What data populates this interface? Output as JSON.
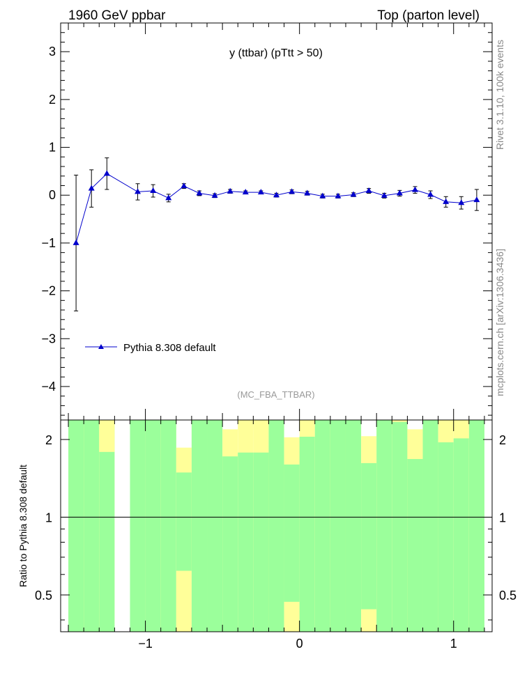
{
  "header": {
    "left": "1960 GeV ppbar",
    "right": "Top (parton level)"
  },
  "side_labels": {
    "rivet": "Rivet 3.1.10,  100k events",
    "mcplots": "mcplots.cern.ch [arXiv:1306.3436]"
  },
  "chart_data": {
    "type": "line",
    "title": "y (ttbar) (pTtt > 50)",
    "watermark": "(MC_FBA_TTBAR)",
    "xlabel": "",
    "ylabel": "",
    "xlim": [
      -1.55,
      1.25
    ],
    "ylim": [
      -4.7,
      3.6
    ],
    "x_ticks": [
      -1,
      0,
      1
    ],
    "x_tick_labels": [
      "−1",
      "0",
      "1"
    ],
    "y_ticks": [
      -4,
      -3,
      -2,
      -1,
      0,
      1,
      2,
      3
    ],
    "y_tick_labels": [
      "−4",
      "−3",
      "−2",
      "−1",
      "0",
      "1",
      "2",
      "3"
    ],
    "legend": {
      "placement": "lower-left",
      "entries": [
        "Pythia 8.308 default"
      ]
    },
    "series": [
      {
        "name": "Pythia 8.308 default",
        "color": "#0000cc",
        "marker": "triangle",
        "x": [
          -1.45,
          -1.35,
          -1.25,
          -1.05,
          -0.95,
          -0.85,
          -0.75,
          -0.65,
          -0.55,
          -0.45,
          -0.35,
          -0.25,
          -0.15,
          -0.05,
          0.05,
          0.15,
          0.25,
          0.35,
          0.45,
          0.55,
          0.65,
          0.75,
          0.85,
          0.95,
          1.05,
          1.15
        ],
        "y": [
          -1.0,
          0.14,
          0.45,
          0.07,
          0.09,
          -0.06,
          0.19,
          0.04,
          -0.01,
          0.08,
          0.06,
          0.06,
          0.0,
          0.07,
          0.04,
          -0.02,
          -0.02,
          0.01,
          0.09,
          -0.01,
          0.04,
          0.11,
          0.01,
          -0.14,
          -0.16,
          -0.1
        ],
        "yerr": [
          1.42,
          0.39,
          0.33,
          0.17,
          0.13,
          0.08,
          0.05,
          0.05,
          0.04,
          0.04,
          0.03,
          0.03,
          0.04,
          0.04,
          0.04,
          0.04,
          0.04,
          0.04,
          0.05,
          0.05,
          0.06,
          0.07,
          0.08,
          0.11,
          0.13,
          0.22
        ]
      }
    ],
    "ratio": {
      "ylabel": "Ratio to Pythia 8.308 default",
      "scale": "log",
      "ylim": [
        0.36,
        2.38
      ],
      "y_ticks": [
        0.5,
        1,
        2
      ],
      "y_tick_labels": [
        "0.5",
        "1",
        "2"
      ],
      "reference_line": 1,
      "green_color": "#9bff9b",
      "yellow_color": "#ffff99",
      "bins": [
        {
          "lo": -1.5,
          "hi": -1.4,
          "green": [
            0.36,
            2.38
          ],
          "yellow": [
            0.36,
            2.38
          ]
        },
        {
          "lo": -1.4,
          "hi": -1.3,
          "green": [
            0.36,
            2.38
          ],
          "yellow": [
            0.36,
            2.38
          ]
        },
        {
          "lo": -1.3,
          "hi": -1.2,
          "green": [
            0.36,
            2.38
          ],
          "yellow": [
            0.36,
            2.38
          ],
          "green_hide": [
            1.79,
            2.38
          ]
        },
        {
          "lo": -1.2,
          "hi": -1.1,
          "green": null,
          "yellow": null
        },
        {
          "lo": -1.1,
          "hi": -1.0,
          "green": [
            0.36,
            2.38
          ],
          "yellow": [
            0.36,
            2.38
          ]
        },
        {
          "lo": -1.0,
          "hi": -0.9,
          "green": [
            0.36,
            2.38
          ],
          "yellow": [
            0.36,
            2.38
          ]
        },
        {
          "lo": -0.9,
          "hi": -0.8,
          "green": [
            0.36,
            2.38
          ],
          "yellow": [
            0.36,
            2.38
          ]
        },
        {
          "lo": -0.8,
          "hi": -0.7,
          "green": [
            0.62,
            1.49
          ],
          "yellow": [
            0.36,
            1.86
          ]
        },
        {
          "lo": -0.7,
          "hi": -0.6,
          "green": [
            0.36,
            2.38
          ],
          "yellow": [
            0.36,
            2.38
          ]
        },
        {
          "lo": -0.6,
          "hi": -0.5,
          "green": [
            0.36,
            2.38
          ],
          "yellow": [
            0.36,
            2.38
          ]
        },
        {
          "lo": -0.5,
          "hi": -0.4,
          "green": [
            0.36,
            1.72
          ],
          "yellow": [
            0.36,
            2.19
          ]
        },
        {
          "lo": -0.4,
          "hi": -0.3,
          "green": [
            0.36,
            1.78
          ],
          "yellow": [
            0.36,
            2.38
          ]
        },
        {
          "lo": -0.3,
          "hi": -0.2,
          "green": [
            0.36,
            1.78
          ],
          "yellow": [
            0.36,
            2.38
          ]
        },
        {
          "lo": -0.2,
          "hi": -0.1,
          "green": [
            0.36,
            2.38
          ],
          "yellow": [
            0.36,
            2.38
          ]
        },
        {
          "lo": -0.1,
          "hi": 0.0,
          "green": [
            0.47,
            1.6
          ],
          "yellow": [
            0.36,
            2.04
          ]
        },
        {
          "lo": 0.0,
          "hi": 0.1,
          "green": [
            0.36,
            2.05
          ],
          "yellow": [
            0.36,
            2.38
          ]
        },
        {
          "lo": 0.1,
          "hi": 0.2,
          "green": [
            0.36,
            2.38
          ],
          "yellow": [
            0.36,
            2.38
          ]
        },
        {
          "lo": 0.2,
          "hi": 0.3,
          "green": [
            0.36,
            2.38
          ],
          "yellow": [
            0.36,
            2.38
          ]
        },
        {
          "lo": 0.3,
          "hi": 0.4,
          "green": [
            0.36,
            2.38
          ],
          "yellow": [
            0.36,
            2.38
          ]
        },
        {
          "lo": 0.4,
          "hi": 0.5,
          "green": [
            0.44,
            1.62
          ],
          "yellow": [
            0.36,
            2.06
          ]
        },
        {
          "lo": 0.5,
          "hi": 0.6,
          "green": [
            0.36,
            2.38
          ],
          "yellow": [
            0.36,
            2.38
          ]
        },
        {
          "lo": 0.6,
          "hi": 0.7,
          "green": [
            0.36,
            2.38
          ],
          "yellow": [
            0.36,
            2.38
          ],
          "green_hide": [
            2.34,
            2.38
          ]
        },
        {
          "lo": 0.7,
          "hi": 0.8,
          "green": [
            0.36,
            1.68
          ],
          "yellow": [
            0.36,
            2.19
          ]
        },
        {
          "lo": 0.8,
          "hi": 0.9,
          "green": [
            0.36,
            2.38
          ],
          "yellow": [
            0.36,
            2.38
          ]
        },
        {
          "lo": 0.9,
          "hi": 1.0,
          "green": [
            0.36,
            1.95
          ],
          "yellow": [
            0.36,
            2.38
          ]
        },
        {
          "lo": 1.0,
          "hi": 1.1,
          "green": [
            0.36,
            2.02
          ],
          "yellow": [
            0.36,
            2.38
          ]
        },
        {
          "lo": 1.1,
          "hi": 1.2,
          "green": [
            0.36,
            2.38
          ],
          "yellow": [
            0.36,
            2.38
          ]
        }
      ]
    }
  }
}
